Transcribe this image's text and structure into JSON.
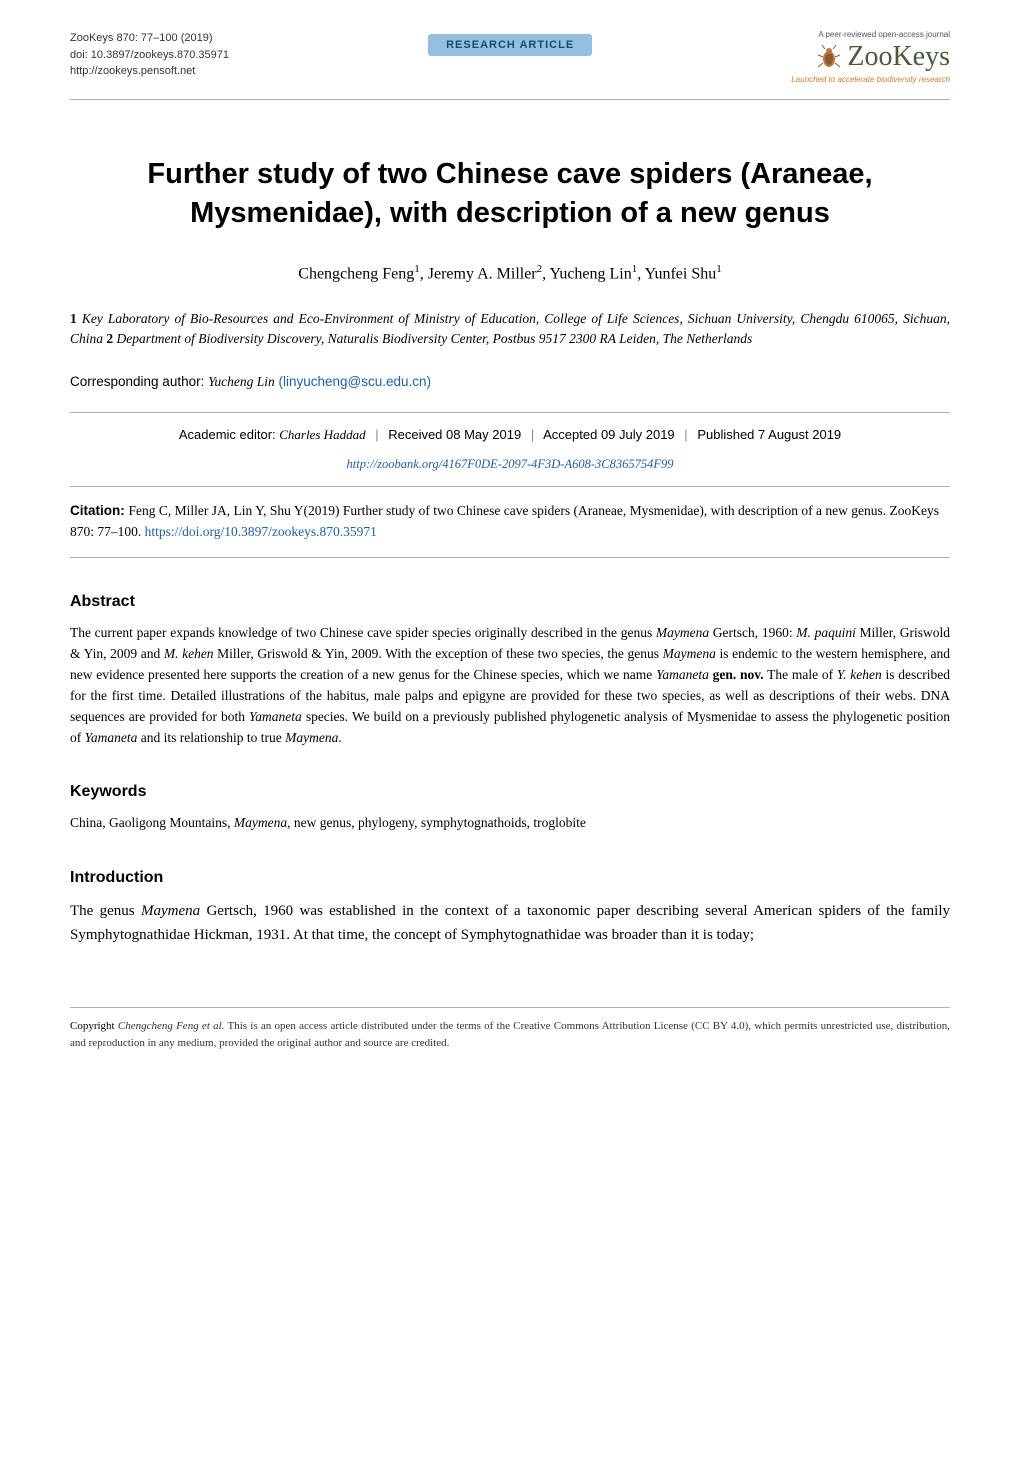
{
  "meta": {
    "journal_line": "ZooKeys 870: 77–100 (2019)",
    "doi_line": "doi: 10.3897/zookeys.870.35971",
    "url_line": "http://zookeys.pensoft.net",
    "badge": "RESEARCH ARTICLE",
    "logo_top": "A peer-reviewed open-access journal",
    "logo_main": "ZooKeys",
    "logo_sub": "Launched to accelerate biodiversity research"
  },
  "title": "Further study of two Chinese cave spiders (Araneae, Mysmenidae), with description of a new genus",
  "authors_html": "Chengcheng Feng<sup>1</sup>, Jeremy A. Miller<sup>2</sup>, Yucheng Lin<sup>1</sup>, Yunfei Shu<sup>1</sup>",
  "affiliations_html": "<span class='num'>1</span> Key Laboratory of Bio-Resources and Eco-Environment of Ministry of Education, College of Life Sciences, Sichuan University, Chengdu 610065, Sichuan, China <span class='num'>2</span> Department of Biodiversity Discovery, Naturalis Biodiversity Center, Postbus 9517 2300 RA Leiden, The Netherlands",
  "corresponding": {
    "label": "Corresponding author: ",
    "name": "Yucheng Lin",
    "email": "(linyucheng@scu.edu.cn)"
  },
  "editor_row": {
    "lbl": "Academic editor: ",
    "name": "Charles Haddad",
    "received": "Received 08 May 2019",
    "accepted": "Accepted 09 July 2019",
    "published": "Published 7 August 2019"
  },
  "zoobank": "http://zoobank.org/4167F0DE-2097-4F3D-A608-3C8365754F99",
  "citation": {
    "lbl": "Citation: ",
    "text": "Feng C, Miller JA, Lin Y, Shu Y(2019) Further study of two Chinese cave spiders (Araneae, Mysmenidae), with description of a new genus. ZooKeys 870: 77–100. ",
    "doi": "https://doi.org/10.3897/zookeys.870.35971"
  },
  "abstract": {
    "heading": "Abstract",
    "body_html": "The current paper expands knowledge of two Chinese cave spider species originally described in the genus <i>Maymena</i> Gertsch, 1960: <i>M. paquini</i> Miller, Griswold & Yin, 2009 and <i>M. kehen</i> Miller, Griswold & Yin, 2009. With the exception of these two species, the genus <i>Maymena</i> is endemic to the western hemisphere, and new evidence presented here supports the creation of a new genus for the Chinese species, which we name <i>Yamaneta</i> <b>gen. nov.</b> The male of <i>Y. kehen</i> is described for the first time. Detailed illustrations of the habitus, male palps and epigyne are provided for these two species, as well as descriptions of their webs. DNA sequences are provided for both <i>Yamaneta</i> species. We build on a previously published phylogenetic analysis of Mysmenidae to assess the phylogenetic position of <i>Yamaneta</i> and its relationship to true <i>Maymena</i>."
  },
  "keywords": {
    "heading": "Keywords",
    "body_html": "China, Gaoligong Mountains, <i>Maymena</i>, new genus, phylogeny, symphytognathoids, troglobite"
  },
  "intro": {
    "heading": "Introduction",
    "body_html": "The genus <i>Maymena</i> Gertsch, 1960 was established in the context of a taxonomic paper describing several American spiders of the family Symphytognathidae Hickman, 1931. At that time, the concept of Symphytognathidae was broader than it is today;"
  },
  "footer": {
    "copyright": "Copyright ",
    "auth": "Chengcheng Feng et al.",
    "text": " This is an open access article distributed under the terms of the Creative Commons Attribution License (CC BY 4.0), which permits unrestricted use, distribution, and reproduction in any medium, provided the original author and source are credited."
  },
  "colors": {
    "badge_bg": "#94bfe0",
    "badge_fg": "#1a4a6e",
    "link": "#2060a0",
    "logo_green": "#4a5a3a",
    "logo_orange": "#d08030",
    "rule": "#b0b0b0"
  },
  "fonts": {
    "body": "Georgia, 'Times New Roman', serif",
    "sans": "Arial, sans-serif",
    "title_size": 29,
    "author_size": 16,
    "body_size": 13.5,
    "intro_size": 15,
    "meta_size": 11
  }
}
